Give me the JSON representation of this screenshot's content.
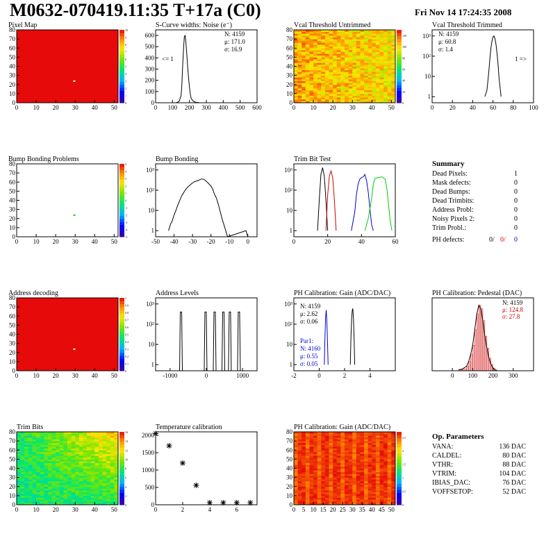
{
  "header": {
    "title": "M0632-070419.11:35 T+17a (C0)",
    "date": "Fri Nov 14 17:24:35 2008"
  },
  "panels": {
    "pixel_map": {
      "title": "Pixel Map"
    },
    "scurve": {
      "title": "S-Curve widths: Noise (e⁻)",
      "stats": [
        "N: 4159",
        "μ: 171.0",
        "σ: 16.9"
      ],
      "underflow": "<= 1"
    },
    "vcal_untrimmed": {
      "title": "Vcal Threshold Untrimmed"
    },
    "vcal_trimmed": {
      "title": "Vcal Threshold Trimmed",
      "stats": [
        "N: 4159",
        "μ: 60.8",
        "σ:  1.4"
      ],
      "overflow": "1 =>"
    },
    "bump_problems": {
      "title": "Bump Bonding Problems"
    },
    "bump_bonding": {
      "title": "Bump Bonding"
    },
    "trim_bit_test": {
      "title": "Trim Bit Test"
    },
    "address_decoding": {
      "title": "Address decoding"
    },
    "address_levels": {
      "title": "Address Levels"
    },
    "ph_gain": {
      "title": "PH Calibration: Gain (ADC/DAC)",
      "stats": [
        "N: 4159",
        "μ: 2.62",
        "σ: 0.06"
      ],
      "par1_stats": [
        "Par1:",
        "N: 4160",
        "μ: 0.55",
        "σ: 0.05"
      ]
    },
    "ph_pedestal": {
      "title": "PH Calibration: Pedestal (DAC)",
      "stats": [
        "N: 4159",
        "μ: 124.8",
        "σ: 27.8"
      ]
    },
    "trim_bits": {
      "title": "Trim Bits"
    },
    "temperature": {
      "title": "Temperature calibration"
    },
    "ph_gain_map": {
      "title": "PH Calibration: Gain (ADC/DAC)"
    }
  },
  "summary": {
    "title": "Summary",
    "rows": [
      {
        "label": "Dead Pixels:",
        "value": "1"
      },
      {
        "label": "Mask defects:",
        "value": "0"
      },
      {
        "label": "Dead Bumps:",
        "value": "0"
      },
      {
        "label": "Dead Trimbits:",
        "value": "0"
      },
      {
        "label": "Address Probl:",
        "value": "0"
      },
      {
        "label": "Noisy Pixels 2:",
        "value": "0"
      },
      {
        "label": "Trim Probl.:",
        "value": "0"
      }
    ],
    "ph_defects": {
      "label": "PH defects:",
      "v1": "0/",
      "v2": "0/",
      "v3": "0"
    }
  },
  "op_parameters": {
    "title": "Op. Parameters",
    "rows": [
      {
        "label": "VANA:",
        "value": "136 DAC"
      },
      {
        "label": "CALDEL:",
        "value": "80 DAC"
      },
      {
        "label": "VTHR:",
        "value": "88 DAC"
      },
      {
        "label": "VTRIM:",
        "value": "104 DAC"
      },
      {
        "label": "IBIAS_DAC:",
        "value": "76 DAC"
      },
      {
        "label": "VOFFSETOP:",
        "value": "52 DAC"
      }
    ]
  },
  "colors": {
    "red": "#e01010",
    "blue": "#0000cc",
    "green": "#00cc00",
    "frame": "#000000"
  },
  "chart_data": [
    {
      "id": "pixel_map",
      "type": "heatmap",
      "title": "Pixel Map",
      "xlim": [
        0,
        52
      ],
      "ylim": [
        0,
        80
      ],
      "xticks": [
        0,
        10,
        20,
        30,
        40,
        50
      ],
      "yticks": [
        0,
        10,
        20,
        30,
        40,
        50,
        60,
        70,
        80
      ],
      "zlim": [
        0,
        10
      ],
      "zticks": [
        0,
        1,
        2,
        3,
        4,
        5,
        6,
        7,
        8,
        9,
        10
      ],
      "fill_value": 10,
      "dead_pixel": [
        29,
        23
      ]
    },
    {
      "id": "scurve",
      "type": "bar",
      "title": "S-Curve widths: Noise (e⁻)",
      "xlim": [
        0,
        600
      ],
      "ylim": [
        0,
        650
      ],
      "xticks": [
        0,
        100,
        200,
        300,
        400,
        500,
        600
      ],
      "yticks": [
        0,
        100,
        200,
        300,
        400,
        500,
        600
      ],
      "x": [
        120,
        130,
        140,
        150,
        155,
        160,
        165,
        170,
        175,
        180,
        185,
        190,
        195,
        200,
        205,
        210,
        220,
        230,
        240,
        250,
        260
      ],
      "y": [
        0,
        5,
        15,
        60,
        150,
        330,
        480,
        590,
        600,
        520,
        420,
        310,
        220,
        140,
        80,
        40,
        18,
        8,
        4,
        2,
        0
      ]
    },
    {
      "id": "vcal_untrimmed",
      "type": "heatmap",
      "title": "Vcal Threshold Untrimmed",
      "xlim": [
        0,
        52
      ],
      "ylim": [
        0,
        80
      ],
      "xticks": [
        0,
        10,
        20,
        30,
        40,
        50
      ],
      "yticks": [
        0,
        10,
        20,
        30,
        40,
        50,
        60,
        70,
        80
      ],
      "zlim": [
        0,
        130
      ],
      "zticks": [
        0,
        20,
        40,
        60,
        80,
        100,
        120
      ]
    },
    {
      "id": "vcal_trimmed",
      "type": "bar",
      "log_y": true,
      "title": "Vcal Threshold Trimmed",
      "xlim": [
        0,
        100
      ],
      "ylim": [
        0.5,
        2000
      ],
      "xticks": [
        0,
        20,
        40,
        60,
        80,
        100
      ],
      "yticks": [
        1,
        10,
        100,
        1000
      ],
      "x": [
        52,
        54,
        55,
        56,
        57,
        58,
        59,
        60,
        61,
        62,
        63,
        64,
        65,
        66,
        68
      ],
      "y": [
        1,
        2,
        6,
        20,
        80,
        260,
        560,
        900,
        1000,
        720,
        380,
        140,
        40,
        8,
        1
      ]
    },
    {
      "id": "bump_problems",
      "type": "heatmap",
      "title": "Bump Bonding Problems",
      "xlim": [
        0,
        52
      ],
      "ylim": [
        0,
        80
      ],
      "xticks": [
        0,
        10,
        20,
        30,
        40,
        50
      ],
      "yticks": [
        0,
        10,
        20,
        30,
        40,
        50,
        60,
        70,
        80
      ],
      "zlim": [
        -5,
        5
      ],
      "zticks": [
        -5,
        -4,
        -3,
        -2,
        -1,
        0,
        1,
        2,
        3,
        4,
        5
      ],
      "marked_pixel": [
        29,
        23
      ]
    },
    {
      "id": "bump_bonding",
      "type": "bar",
      "log_y": true,
      "title": "Bump Bonding",
      "xlim": [
        -50,
        5
      ],
      "ylim": [
        0.5,
        2000
      ],
      "xticks": [
        -50,
        -40,
        -30,
        -20,
        -10,
        0
      ],
      "yticks": [
        1,
        10,
        100,
        1000
      ],
      "x": [
        -43,
        -42,
        -41,
        -40,
        -39,
        -38,
        -37,
        -36,
        -35,
        -34,
        -33,
        -32,
        -31,
        -30,
        -29,
        -28,
        -27,
        -26,
        -25,
        -24,
        -23,
        -22,
        -21,
        -20,
        -19,
        -18,
        -17,
        -16,
        -15,
        -14,
        -13,
        -12,
        -11,
        -1,
        0
      ],
      "y": [
        1,
        2,
        3,
        6,
        10,
        18,
        30,
        50,
        70,
        100,
        130,
        160,
        190,
        230,
        260,
        280,
        300,
        330,
        360,
        350,
        300,
        250,
        200,
        160,
        110,
        60,
        40,
        20,
        9,
        4,
        2,
        1,
        0,
        1,
        0
      ]
    },
    {
      "id": "trim_bit_test",
      "type": "line",
      "log_y": true,
      "title": "Trim Bit Test",
      "xlim": [
        0,
        60
      ],
      "ylim": [
        0.5,
        2000
      ],
      "xticks": [
        0,
        20,
        40,
        60
      ],
      "yticks": [
        1,
        10,
        100,
        1000
      ],
      "series": [
        {
          "color": "#000000",
          "x": [
            14,
            15,
            16,
            17,
            18,
            19,
            20
          ],
          "y": [
            1,
            30,
            600,
            1300,
            500,
            30,
            1
          ]
        },
        {
          "color": "#cc0000",
          "x": [
            19,
            20,
            21,
            22,
            23,
            24,
            25
          ],
          "y": [
            1,
            60,
            500,
            900,
            400,
            30,
            1
          ]
        },
        {
          "color": "#0000cc",
          "x": [
            34,
            36,
            37,
            38,
            39,
            40,
            41,
            42,
            43,
            44,
            45,
            46,
            47
          ],
          "y": [
            1,
            8,
            60,
            200,
            350,
            420,
            450,
            600,
            300,
            80,
            12,
            2,
            1
          ]
        },
        {
          "color": "#00cc00",
          "x": [
            42,
            44,
            46,
            47,
            48,
            50,
            52,
            54,
            55,
            56,
            57,
            58
          ],
          "y": [
            1,
            4,
            40,
            200,
            380,
            420,
            460,
            350,
            120,
            20,
            3,
            1
          ]
        }
      ]
    },
    {
      "id": "address_decoding",
      "type": "heatmap",
      "title": "Address decoding",
      "xlim": [
        0,
        52
      ],
      "ylim": [
        0,
        80
      ],
      "xticks": [
        0,
        10,
        20,
        30,
        40,
        50
      ],
      "yticks": [
        0,
        10,
        20,
        30,
        40,
        50,
        60,
        70,
        80
      ],
      "zlim": [
        0,
        1
      ],
      "zticks": [
        0,
        0.1,
        0.2,
        0.3,
        0.4,
        0.5,
        0.6,
        0.7,
        0.8,
        0.9,
        1
      ],
      "fill_value": 1,
      "dead_pixel": [
        29,
        23
      ]
    },
    {
      "id": "address_levels",
      "type": "bar",
      "log_y": true,
      "title": "Address Levels",
      "xlim": [
        -1400,
        1400
      ],
      "ylim": [
        0.5,
        2000
      ],
      "xticks": [
        -1000,
        0,
        1000
      ],
      "yticks": [
        1,
        10,
        100,
        1000
      ],
      "peaks_x": [
        -700,
        -20,
        230,
        470,
        650,
        900
      ],
      "peaks_y": [
        400,
        400,
        400,
        400,
        400,
        400
      ]
    },
    {
      "id": "ph_gain",
      "type": "line",
      "log_y": true,
      "title": "PH Calibration: Gain (ADC/DAC)",
      "xlim": [
        -2,
        6
      ],
      "ylim": [
        0.5,
        2000
      ],
      "xticks": [
        -2,
        0,
        2,
        4
      ],
      "yticks": [
        1,
        10,
        100,
        1000
      ],
      "series": [
        {
          "name": "Par1",
          "color": "#0000cc",
          "x": [
            0.4,
            0.45,
            0.5,
            0.55,
            0.6,
            0.65,
            0.7
          ],
          "y": [
            1,
            20,
            200,
            500,
            150,
            15,
            1
          ]
        },
        {
          "color": "#000000",
          "x": [
            2.45,
            2.5,
            2.55,
            2.6,
            2.65,
            2.7,
            2.75,
            2.8
          ],
          "y": [
            1,
            20,
            150,
            450,
            600,
            200,
            20,
            1
          ]
        }
      ]
    },
    {
      "id": "ph_pedestal",
      "type": "bar",
      "title": "PH Calibration: Pedestal (DAC)",
      "xlim": [
        -100,
        400
      ],
      "ylim": [
        0,
        80
      ],
      "xticks": [
        0,
        100,
        200,
        300
      ],
      "x": [
        30,
        50,
        70,
        80,
        90,
        100,
        110,
        120,
        130,
        140,
        150,
        160,
        170,
        180,
        190,
        200,
        210,
        220
      ],
      "y": [
        1,
        2,
        5,
        10,
        18,
        28,
        45,
        62,
        72,
        68,
        55,
        38,
        25,
        14,
        7,
        3,
        1,
        0
      ]
    },
    {
      "id": "trim_bits",
      "type": "heatmap",
      "title": "Trim Bits",
      "xlim": [
        0,
        52
      ],
      "ylim": [
        0,
        80
      ],
      "xticks": [
        0,
        10,
        20,
        30,
        40,
        50
      ],
      "yticks": [
        0,
        10,
        20,
        30,
        40,
        50,
        60,
        70,
        80
      ],
      "zlim": [
        0,
        16
      ],
      "zticks": [
        0,
        2,
        4,
        6,
        8,
        10,
        12,
        14,
        16
      ]
    },
    {
      "id": "temperature",
      "type": "scatter",
      "title": "Temperature calibration",
      "xlim": [
        0,
        7.5
      ],
      "ylim": [
        0,
        2100
      ],
      "xticks": [
        0,
        2,
        4,
        6
      ],
      "yticks": [
        0,
        500,
        1000,
        1500,
        2000
      ],
      "x": [
        0,
        1,
        2,
        3,
        4,
        5,
        6,
        7
      ],
      "y": [
        2050,
        1700,
        1200,
        560,
        60,
        60,
        60,
        60
      ]
    },
    {
      "id": "ph_gain_map",
      "type": "heatmap",
      "title": "PH Calibration: Gain (ADC/DAC)",
      "xlim": [
        0,
        52
      ],
      "ylim": [
        0,
        80
      ],
      "xticks": [
        0,
        5,
        10,
        15,
        20,
        25,
        30,
        35,
        40,
        45,
        50
      ],
      "yticks": [
        0,
        10,
        20,
        30,
        40,
        50,
        60,
        70,
        80
      ],
      "zlim": [
        0,
        2.7
      ],
      "zticks": [
        0,
        0.5,
        1,
        1.5,
        2,
        2.5
      ]
    }
  ]
}
